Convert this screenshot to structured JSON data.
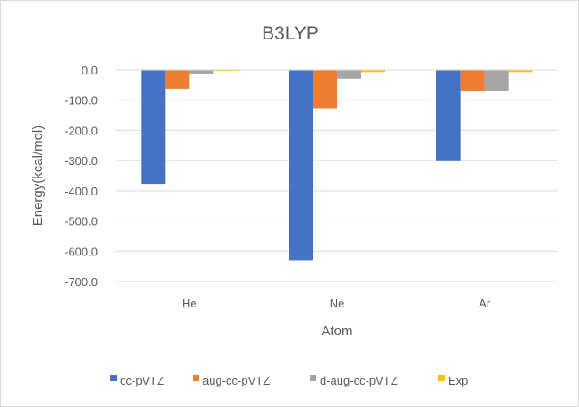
{
  "chart_data": {
    "type": "bar",
    "title": "B3LYP",
    "xlabel": "Atom",
    "ylabel": "Energy(kcal/mol)",
    "categories": [
      "He",
      "Ne",
      "Ar"
    ],
    "ylim": [
      -700,
      0
    ],
    "ytick_values": [
      0,
      -100,
      -200,
      -300,
      -400,
      -500,
      -600,
      -700
    ],
    "ytick_labels": [
      "0.0",
      "-100.0",
      "-200.0",
      "-300.0",
      "-400.0",
      "-500.0",
      "-600.0",
      "-700.0"
    ],
    "grid": true,
    "legend_position": "bottom",
    "series": [
      {
        "name": "cc-pVTZ",
        "color": "#4472c4",
        "values": [
          -377,
          -630,
          -302
        ]
      },
      {
        "name": "aug-cc-pVTZ",
        "color": "#ed7d31",
        "values": [
          -62,
          -129,
          -70
        ]
      },
      {
        "name": "d-aug-cc-pVTZ",
        "color": "#a5a5a5",
        "values": [
          -12,
          -29,
          -70
        ]
      },
      {
        "name": "Exp",
        "color": "#ffc000",
        "values": [
          -3,
          -7,
          -7
        ]
      }
    ]
  }
}
